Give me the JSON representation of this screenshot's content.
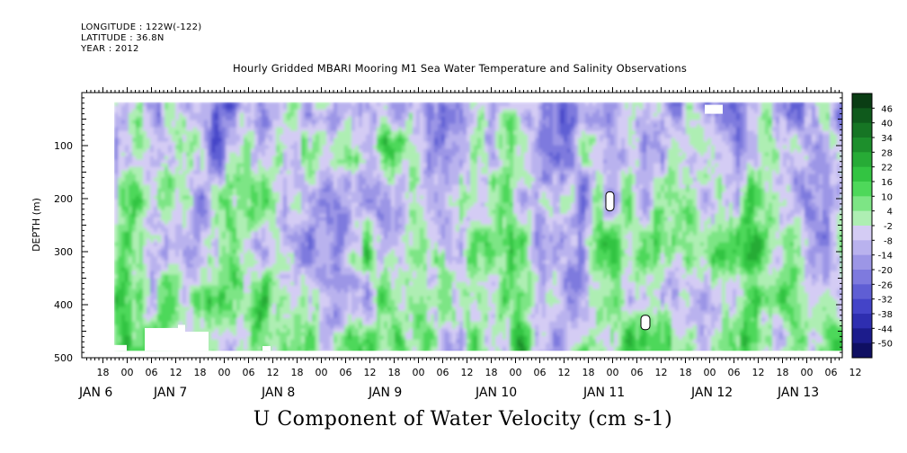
{
  "header": {
    "longitude": "LONGITUDE : 122W(-122)",
    "latitude": "LATITUDE : 36.8N",
    "year": "YEAR : 2012"
  },
  "chart_data": {
    "type": "heatmap",
    "title": "Hourly Gridded MBARI Mooring M1 Sea Water Temperature and Salinity Observations",
    "xlabel": "U Component of Water Velocity (cm s-1)",
    "ylabel": "DEPTH (m)",
    "ylim": [
      500,
      0
    ],
    "y_ticks": [
      "100",
      "200",
      "300",
      "400",
      "500"
    ],
    "x_hour_ticks": [
      "18",
      "00",
      "06",
      "12",
      "18",
      "00",
      "06",
      "12",
      "18",
      "00",
      "06",
      "12",
      "18",
      "00",
      "06",
      "12",
      "18",
      "00",
      "06",
      "12",
      "18",
      "00",
      "06",
      "12",
      "18",
      "00",
      "06",
      "12",
      "18",
      "00",
      "06",
      "12"
    ],
    "x_day_labels": [
      "JAN  6",
      "JAN  7",
      "JAN  8",
      "JAN  9",
      "JAN 10",
      "JAN 11",
      "JAN 12",
      "JAN 13"
    ],
    "colorbar": {
      "labels": [
        "46",
        "40",
        "34",
        "28",
        "22",
        "16",
        "10",
        "4",
        "-2",
        "-8",
        "-14",
        "-20",
        "-26",
        "-32",
        "-38",
        "-44",
        "-50"
      ],
      "colors": [
        "#0a3d14",
        "#0f5a1c",
        "#167524",
        "#1d8f2c",
        "#27ab36",
        "#33c442",
        "#4ed85a",
        "#7de585",
        "#aeeeb3",
        "#d4ccf4",
        "#b9b2ee",
        "#9c96e6",
        "#7e7ade",
        "#5f5ed4",
        "#4444c8",
        "#2e2eb0",
        "#1c1c8c",
        "#0f0f62"
      ],
      "range": [
        -50,
        52
      ]
    },
    "description_grid": "depth 20 to 485 m, Jan 5 18:00 to Jan 13 14:00; values shown as colour field"
  }
}
